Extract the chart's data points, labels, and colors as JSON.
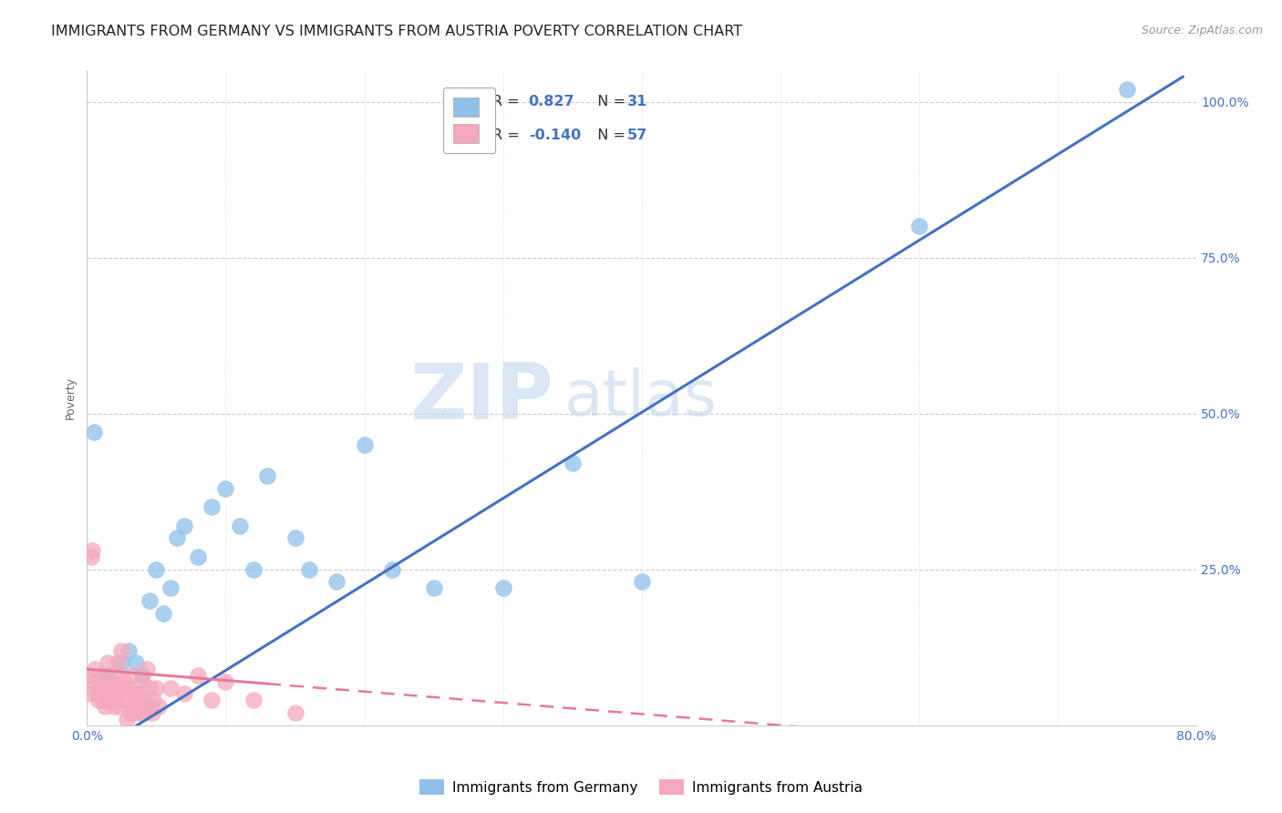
{
  "title": "IMMIGRANTS FROM GERMANY VS IMMIGRANTS FROM AUSTRIA POVERTY CORRELATION CHART",
  "source": "Source: ZipAtlas.com",
  "ylabel": "Poverty",
  "xlim": [
    0.0,
    0.8
  ],
  "ylim": [
    0.0,
    1.05
  ],
  "germany_color": "#8fc0ea",
  "austria_color": "#f5a8bc",
  "germany_line_color": "#4472c4",
  "austria_line_color": "#e8799a",
  "germany_R": 0.827,
  "germany_N": 31,
  "austria_R": -0.14,
  "austria_N": 57,
  "watermark_zip": "ZIP",
  "watermark_atlas": "atlas",
  "background_color": "#ffffff",
  "grid_color": "#cccccc",
  "germany_x": [
    0.005,
    0.01,
    0.015,
    0.02,
    0.025,
    0.03,
    0.035,
    0.04,
    0.045,
    0.05,
    0.055,
    0.06,
    0.065,
    0.07,
    0.08,
    0.09,
    0.1,
    0.11,
    0.12,
    0.13,
    0.15,
    0.16,
    0.18,
    0.2,
    0.22,
    0.25,
    0.3,
    0.35,
    0.4,
    0.6,
    0.75
  ],
  "germany_y": [
    0.47,
    0.07,
    0.08,
    0.05,
    0.1,
    0.12,
    0.1,
    0.08,
    0.2,
    0.25,
    0.18,
    0.22,
    0.3,
    0.32,
    0.27,
    0.35,
    0.38,
    0.32,
    0.25,
    0.4,
    0.3,
    0.25,
    0.23,
    0.45,
    0.25,
    0.22,
    0.22,
    0.42,
    0.23,
    0.8,
    1.02
  ],
  "austria_x": [
    0.001,
    0.002,
    0.003,
    0.004,
    0.005,
    0.006,
    0.007,
    0.008,
    0.009,
    0.01,
    0.011,
    0.012,
    0.013,
    0.014,
    0.015,
    0.016,
    0.017,
    0.018,
    0.019,
    0.02,
    0.021,
    0.022,
    0.023,
    0.024,
    0.025,
    0.026,
    0.027,
    0.028,
    0.029,
    0.03,
    0.031,
    0.032,
    0.033,
    0.034,
    0.035,
    0.036,
    0.037,
    0.038,
    0.039,
    0.04,
    0.041,
    0.042,
    0.043,
    0.044,
    0.045,
    0.046,
    0.047,
    0.048,
    0.05,
    0.052,
    0.06,
    0.07,
    0.08,
    0.09,
    0.1,
    0.12,
    0.15
  ],
  "austria_y": [
    0.05,
    0.08,
    0.27,
    0.28,
    0.07,
    0.09,
    0.05,
    0.04,
    0.06,
    0.08,
    0.04,
    0.06,
    0.03,
    0.05,
    0.1,
    0.07,
    0.04,
    0.06,
    0.03,
    0.08,
    0.05,
    0.1,
    0.03,
    0.06,
    0.12,
    0.04,
    0.07,
    0.04,
    0.01,
    0.06,
    0.02,
    0.08,
    0.02,
    0.05,
    0.03,
    0.04,
    0.02,
    0.05,
    0.03,
    0.07,
    0.02,
    0.04,
    0.09,
    0.03,
    0.06,
    0.03,
    0.02,
    0.04,
    0.06,
    0.03,
    0.06,
    0.05,
    0.08,
    0.04,
    0.07,
    0.04,
    0.02
  ],
  "title_fontsize": 11.5,
  "axis_label_fontsize": 9,
  "tick_fontsize": 10,
  "legend_fontsize": 11,
  "r_value_fontsize": 13,
  "n_value_fontsize": 13
}
